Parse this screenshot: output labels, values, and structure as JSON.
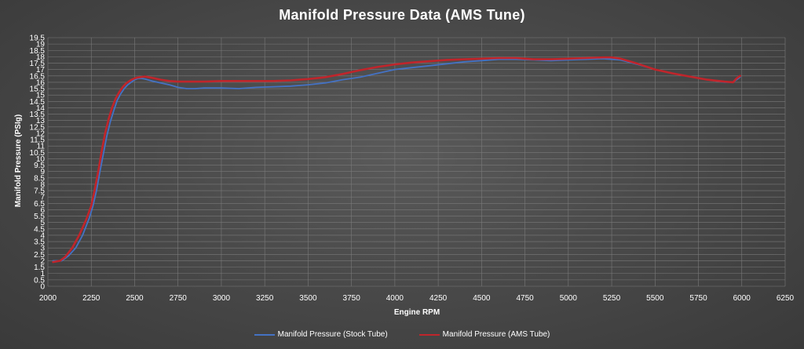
{
  "chart_data": {
    "type": "line",
    "title": "Manifold Pressure Data (AMS Tune)",
    "xlabel": "Engine RPM",
    "ylabel": "Manifold Pressure (PSIg)",
    "xlim": [
      2000,
      6250
    ],
    "ylim": [
      0,
      19.5
    ],
    "x_ticks": [
      "2000",
      "2250",
      "2500",
      "2750",
      "3000",
      "3250",
      "3500",
      "3750",
      "4000",
      "4250",
      "4500",
      "4750",
      "5000",
      "5250",
      "5500",
      "5750",
      "6000",
      "6250"
    ],
    "y_ticks": [
      "0",
      "0.5",
      "1",
      "1.5",
      "2",
      "2.5",
      "3",
      "3.5",
      "4",
      "4.5",
      "5",
      "5.5",
      "6",
      "6.5",
      "7",
      "7.5",
      "8",
      "8.5",
      "9",
      "9.5",
      "10",
      "10.5",
      "11",
      "11.5",
      "12",
      "12.5",
      "13",
      "13.5",
      "14",
      "14.5",
      "15",
      "15.5",
      "16",
      "16.5",
      "17",
      "17.5",
      "18",
      "18.5",
      "19",
      "19.5"
    ],
    "grid": true,
    "legend_position": "bottom",
    "series": [
      {
        "name": "Manifold Pressure (Stock Tube)",
        "color": "#4472c4",
        "x": [
          2030,
          2080,
          2120,
          2160,
          2200,
          2240,
          2260,
          2280,
          2300,
          2320,
          2340,
          2360,
          2380,
          2400,
          2420,
          2440,
          2460,
          2480,
          2500,
          2520,
          2540,
          2560,
          2600,
          2650,
          2700,
          2750,
          2800,
          2850,
          2900,
          3000,
          3100,
          3200,
          3300,
          3400,
          3500,
          3600,
          3700,
          3750,
          3800,
          3900,
          4000,
          4100,
          4200,
          4300,
          4400,
          4500,
          4600,
          4700,
          4800,
          4900,
          5000,
          5100,
          5200,
          5300,
          5400,
          5500,
          5600,
          5700,
          5800,
          5900,
          5950,
          5970,
          5990
        ],
        "y": [
          2.0,
          2.0,
          2.4,
          3.0,
          4.0,
          5.4,
          6.3,
          7.5,
          9.0,
          10.4,
          11.8,
          12.9,
          13.8,
          14.6,
          15.1,
          15.5,
          15.8,
          16.0,
          16.2,
          16.3,
          16.3,
          16.25,
          16.1,
          15.95,
          15.8,
          15.6,
          15.5,
          15.5,
          15.55,
          15.55,
          15.5,
          15.6,
          15.65,
          15.7,
          15.8,
          15.95,
          16.2,
          16.3,
          16.4,
          16.7,
          17.0,
          17.15,
          17.3,
          17.45,
          17.6,
          17.7,
          17.8,
          17.8,
          17.75,
          17.7,
          17.75,
          17.8,
          17.85,
          17.75,
          17.4,
          17.0,
          16.7,
          16.45,
          16.2,
          16.0,
          16.0,
          16.2,
          16.4
        ]
      },
      {
        "name": "Manifold Pressure (AMS Tube)",
        "color": "#c0252b",
        "x": [
          2030,
          2070,
          2100,
          2140,
          2180,
          2220,
          2250,
          2270,
          2290,
          2310,
          2330,
          2350,
          2370,
          2390,
          2410,
          2430,
          2450,
          2470,
          2490,
          2510,
          2530,
          2560,
          2600,
          2650,
          2700,
          2750,
          2800,
          2900,
          3000,
          3100,
          3200,
          3300,
          3400,
          3500,
          3600,
          3700,
          3750,
          3800,
          3900,
          4000,
          4100,
          4200,
          4300,
          4400,
          4500,
          4600,
          4700,
          4750,
          4800,
          4900,
          5000,
          5100,
          5200,
          5250,
          5300,
          5400,
          5500,
          5600,
          5700,
          5800,
          5900,
          5950,
          5970,
          5990
        ],
        "y": [
          1.9,
          2.0,
          2.3,
          3.0,
          4.0,
          5.2,
          6.3,
          7.6,
          9.0,
          10.6,
          12.0,
          13.1,
          14.0,
          14.7,
          15.2,
          15.6,
          15.9,
          16.1,
          16.25,
          16.35,
          16.4,
          16.45,
          16.35,
          16.2,
          16.1,
          16.05,
          16.05,
          16.05,
          16.1,
          16.1,
          16.1,
          16.1,
          16.15,
          16.25,
          16.4,
          16.65,
          16.8,
          16.95,
          17.2,
          17.4,
          17.55,
          17.65,
          17.75,
          17.8,
          17.85,
          17.9,
          17.9,
          17.85,
          17.8,
          17.8,
          17.85,
          17.9,
          17.95,
          17.95,
          17.85,
          17.45,
          17.0,
          16.7,
          16.45,
          16.2,
          16.05,
          16.0,
          16.3,
          16.5
        ]
      }
    ]
  }
}
